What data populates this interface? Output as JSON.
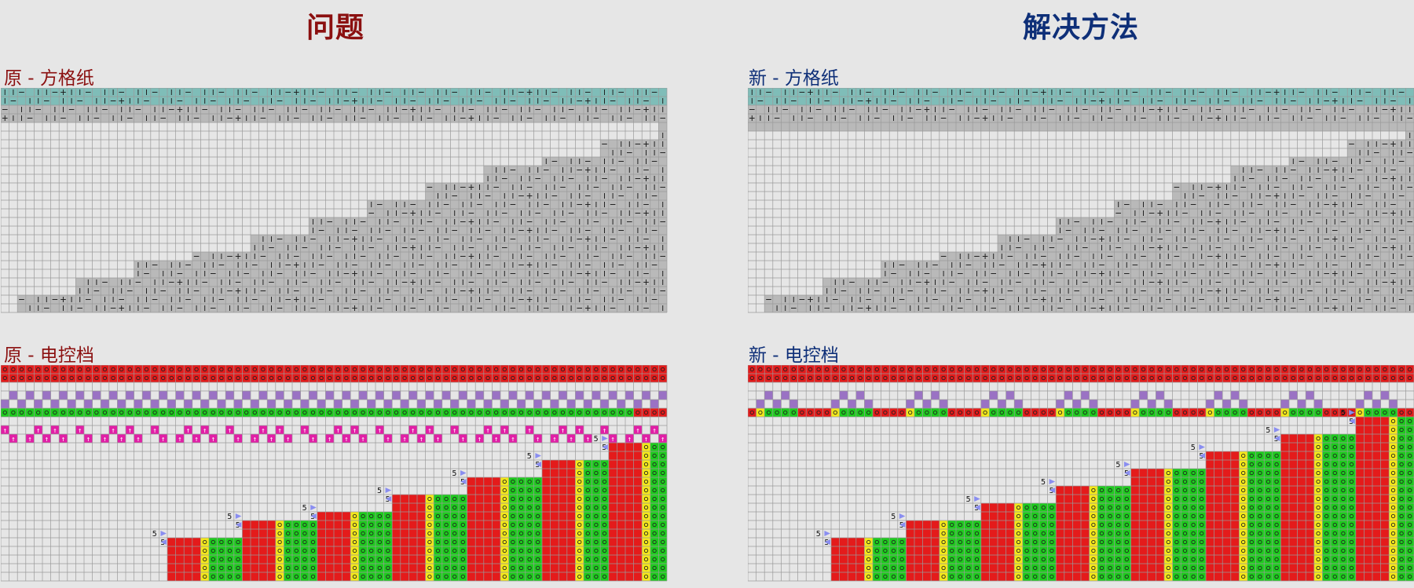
{
  "left": {
    "title": "问题",
    "graph_label": "原 - 方格纸",
    "control_label": "原 - 电控档"
  },
  "right": {
    "title": "解决方法",
    "graph_label": "新 - 方格纸",
    "control_label": "新 - 电控档"
  },
  "colors": {
    "title_red": "#8b1010",
    "title_blue": "#0e2f78",
    "teal_band": "#7fbdb8",
    "stitch_gray": "#b9b9b9",
    "red_cell": "#e41b1b",
    "green_cell": "#1ecb1e",
    "yellow_cell": "#f4e81a",
    "purple_cell": "#9a72c4",
    "magenta_cell": "#e11fa6",
    "arrow_blue": "#8a8ef0",
    "grid_line": "#9a9a9a"
  },
  "cell_marks": {
    "number": "5",
    "up_arrow": "↑"
  }
}
